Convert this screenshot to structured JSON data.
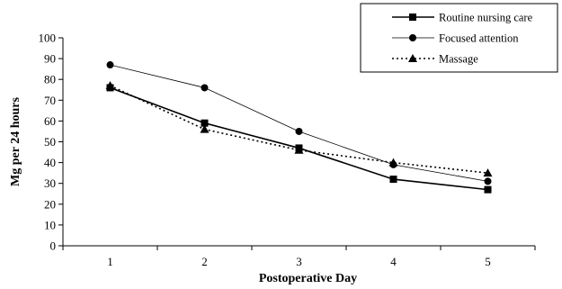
{
  "chart_data": {
    "type": "line",
    "title": "",
    "xlabel": "Postoperative Day",
    "ylabel": "Mg per 24 hours",
    "x": [
      1,
      2,
      3,
      4,
      5
    ],
    "ylim": [
      0,
      100
    ],
    "yticks": [
      0,
      10,
      20,
      30,
      40,
      50,
      60,
      70,
      80,
      90,
      100
    ],
    "grid": false,
    "legend_position": "top-right",
    "series": [
      {
        "name": "Routine nursing care",
        "marker": "square",
        "dash": "solid",
        "values": [
          76,
          59,
          47,
          32,
          27
        ]
      },
      {
        "name": "Focused attention",
        "marker": "circle",
        "dash": "solid-thin",
        "values": [
          87,
          76,
          55,
          39,
          31
        ]
      },
      {
        "name": "Massage",
        "marker": "triangle",
        "dash": "dotted",
        "values": [
          77,
          56,
          46,
          40,
          35
        ]
      }
    ]
  }
}
